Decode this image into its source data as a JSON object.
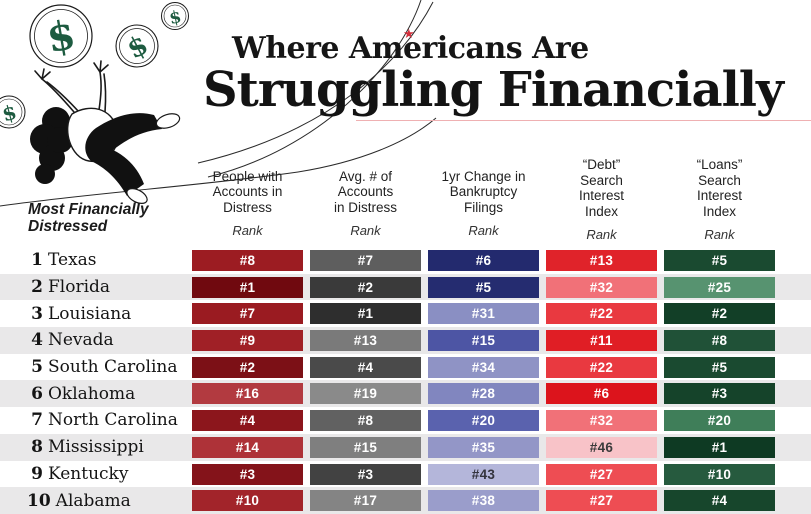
{
  "title": {
    "line1": "Where Americans Are",
    "line2": "Struggling Financially",
    "star_glyph": "★",
    "accent_rule_color": "#efb0b2",
    "star_color": "#d22f3c"
  },
  "row_header": {
    "line1": "Most Financially",
    "line2": "Distressed"
  },
  "columns": [
    {
      "lines": [
        "People with",
        "Accounts in",
        "Distress"
      ],
      "rank_label": "Rank"
    },
    {
      "lines": [
        "Avg. # of",
        "Accounts",
        "in Distress"
      ],
      "rank_label": "Rank"
    },
    {
      "lines": [
        "1yr Change in",
        "Bankruptcy",
        "Filings"
      ],
      "rank_label": "Rank"
    },
    {
      "lines": [
        "“Debt”",
        "Search",
        "Interest",
        "Index"
      ],
      "rank_label": "Rank"
    },
    {
      "lines": [
        "“Loans”",
        "Search",
        "Interest",
        "Index"
      ],
      "rank_label": "Rank"
    }
  ],
  "rows": [
    {
      "position": "1",
      "state": "Texas",
      "cells": [
        {
          "label": "#8",
          "bg": "#9c1c22",
          "fg": "#ffffff"
        },
        {
          "label": "#7",
          "bg": "#5e5e5e",
          "fg": "#ffffff"
        },
        {
          "label": "#6",
          "bg": "#232a6e",
          "fg": "#ffffff"
        },
        {
          "label": "#13",
          "bg": "#e0232a",
          "fg": "#ffffff"
        },
        {
          "label": "#5",
          "bg": "#1a4a30",
          "fg": "#ffffff"
        }
      ]
    },
    {
      "position": "2",
      "state": "Florida",
      "cells": [
        {
          "label": "#1",
          "bg": "#70090f",
          "fg": "#ffffff"
        },
        {
          "label": "#2",
          "bg": "#3a3a3a",
          "fg": "#ffffff"
        },
        {
          "label": "#5",
          "bg": "#252c70",
          "fg": "#ffffff"
        },
        {
          "label": "#32",
          "bg": "#f17178",
          "fg": "#ffffff"
        },
        {
          "label": "#25",
          "bg": "#579370",
          "fg": "#ffffff"
        }
      ]
    },
    {
      "position": "3",
      "state": "Louisiana",
      "cells": [
        {
          "label": "#7",
          "bg": "#9a1b21",
          "fg": "#ffffff"
        },
        {
          "label": "#1",
          "bg": "#2e2e2e",
          "fg": "#ffffff"
        },
        {
          "label": "#31",
          "bg": "#8a8fc3",
          "fg": "#ffffff"
        },
        {
          "label": "#22",
          "bg": "#e93940",
          "fg": "#ffffff"
        },
        {
          "label": "#2",
          "bg": "#123f27",
          "fg": "#ffffff"
        }
      ]
    },
    {
      "position": "4",
      "state": "Nevada",
      "cells": [
        {
          "label": "#9",
          "bg": "#a02026",
          "fg": "#ffffff"
        },
        {
          "label": "#13",
          "bg": "#7a7a7a",
          "fg": "#ffffff"
        },
        {
          "label": "#15",
          "bg": "#4d55a4",
          "fg": "#ffffff"
        },
        {
          "label": "#11",
          "bg": "#e01e25",
          "fg": "#ffffff"
        },
        {
          "label": "#8",
          "bg": "#205137",
          "fg": "#ffffff"
        }
      ]
    },
    {
      "position": "5",
      "state": "South Carolina",
      "cells": [
        {
          "label": "#2",
          "bg": "#7c1016",
          "fg": "#ffffff"
        },
        {
          "label": "#4",
          "bg": "#4a4a4a",
          "fg": "#ffffff"
        },
        {
          "label": "#34",
          "bg": "#8f93c5",
          "fg": "#ffffff"
        },
        {
          "label": "#22",
          "bg": "#e93940",
          "fg": "#ffffff"
        },
        {
          "label": "#5",
          "bg": "#1a4a30",
          "fg": "#ffffff"
        }
      ]
    },
    {
      "position": "6",
      "state": "Oklahoma",
      "cells": [
        {
          "label": "#16",
          "bg": "#b23a40",
          "fg": "#ffffff"
        },
        {
          "label": "#19",
          "bg": "#8a8a8a",
          "fg": "#ffffff"
        },
        {
          "label": "#28",
          "bg": "#8186bf",
          "fg": "#ffffff"
        },
        {
          "label": "#6",
          "bg": "#dc141c",
          "fg": "#ffffff"
        },
        {
          "label": "#3",
          "bg": "#15432a",
          "fg": "#ffffff"
        }
      ]
    },
    {
      "position": "7",
      "state": "North Carolina",
      "cells": [
        {
          "label": "#4",
          "bg": "#8c161c",
          "fg": "#ffffff"
        },
        {
          "label": "#8",
          "bg": "#616161",
          "fg": "#ffffff"
        },
        {
          "label": "#20",
          "bg": "#5a62ae",
          "fg": "#ffffff"
        },
        {
          "label": "#32",
          "bg": "#f17178",
          "fg": "#ffffff"
        },
        {
          "label": "#20",
          "bg": "#3f7e59",
          "fg": "#ffffff"
        }
      ]
    },
    {
      "position": "8",
      "state": "Mississippi",
      "cells": [
        {
          "label": "#14",
          "bg": "#ae3238",
          "fg": "#ffffff"
        },
        {
          "label": "#15",
          "bg": "#7f7f7f",
          "fg": "#ffffff"
        },
        {
          "label": "#35",
          "bg": "#9396c7",
          "fg": "#ffffff"
        },
        {
          "label": "#46",
          "bg": "#f8c3c8",
          "fg": "#3b3b3b"
        },
        {
          "label": "#1",
          "bg": "#0e3a23",
          "fg": "#ffffff"
        }
      ]
    },
    {
      "position": "9",
      "state": "Kentucky",
      "cells": [
        {
          "label": "#3",
          "bg": "#84131a",
          "fg": "#ffffff"
        },
        {
          "label": "#3",
          "bg": "#424242",
          "fg": "#ffffff"
        },
        {
          "label": "#43",
          "bg": "#b4b6da",
          "fg": "#34343e"
        },
        {
          "label": "#27",
          "bg": "#ee4d53",
          "fg": "#ffffff"
        },
        {
          "label": "#10",
          "bg": "#265a3e",
          "fg": "#ffffff"
        }
      ]
    },
    {
      "position": "10",
      "state": "Alabama",
      "cells": [
        {
          "label": "#10",
          "bg": "#a2242a",
          "fg": "#ffffff"
        },
        {
          "label": "#17",
          "bg": "#848484",
          "fg": "#ffffff"
        },
        {
          "label": "#38",
          "bg": "#9a9dcb",
          "fg": "#ffffff"
        },
        {
          "label": "#27",
          "bg": "#ee4d53",
          "fg": "#ffffff"
        },
        {
          "label": "#4",
          "bg": "#17462c",
          "fg": "#ffffff"
        }
      ]
    }
  ],
  "stripe_color": "#e9e8e9",
  "coin_dollar_color": "#1d5b40",
  "chart_data": {
    "type": "table",
    "title": "Where Americans Are Struggling Financially",
    "row_header": "Most Financially Distressed",
    "columns": [
      "People with Accounts in Distress (Rank)",
      "Avg. # of Accounts in Distress (Rank)",
      "1yr Change in Bankruptcy Filings (Rank)",
      "\"Debt\" Search Interest Index (Rank)",
      "\"Loans\" Search Interest Index (Rank)"
    ],
    "rows": [
      {
        "overall_rank": 1,
        "state": "Texas",
        "ranks": [
          8,
          7,
          6,
          13,
          5
        ]
      },
      {
        "overall_rank": 2,
        "state": "Florida",
        "ranks": [
          1,
          2,
          5,
          32,
          25
        ]
      },
      {
        "overall_rank": 3,
        "state": "Louisiana",
        "ranks": [
          7,
          1,
          31,
          22,
          2
        ]
      },
      {
        "overall_rank": 4,
        "state": "Nevada",
        "ranks": [
          9,
          13,
          15,
          11,
          8
        ]
      },
      {
        "overall_rank": 5,
        "state": "South Carolina",
        "ranks": [
          2,
          4,
          34,
          22,
          5
        ]
      },
      {
        "overall_rank": 6,
        "state": "Oklahoma",
        "ranks": [
          16,
          19,
          28,
          6,
          3
        ]
      },
      {
        "overall_rank": 7,
        "state": "North Carolina",
        "ranks": [
          4,
          8,
          20,
          32,
          20
        ]
      },
      {
        "overall_rank": 8,
        "state": "Mississippi",
        "ranks": [
          14,
          15,
          35,
          46,
          1
        ]
      },
      {
        "overall_rank": 9,
        "state": "Kentucky",
        "ranks": [
          3,
          3,
          43,
          27,
          10
        ]
      },
      {
        "overall_rank": 10,
        "state": "Alabama",
        "ranks": [
          10,
          17,
          38,
          27,
          4
        ]
      }
    ]
  }
}
